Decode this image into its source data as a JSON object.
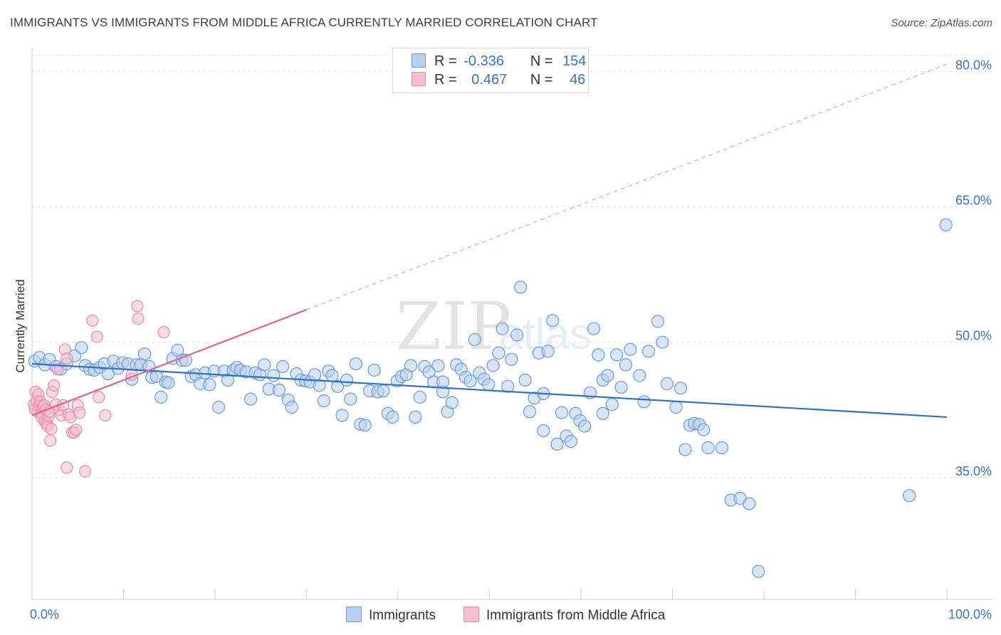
{
  "title": "IMMIGRANTS VS IMMIGRANTS FROM MIDDLE AFRICA CURRENTLY MARRIED CORRELATION CHART",
  "source": "Source: ZipAtlas.com",
  "watermark": {
    "zip": "ZIP",
    "atlas": "atlas"
  },
  "legend": {
    "rows": [
      {
        "r_label": "R =",
        "r_value": "-0.336",
        "n_label": "N =",
        "n_value": "154",
        "color": "#b8d0f0"
      },
      {
        "r_label": "R =",
        "r_value": "0.467",
        "n_label": "N =",
        "n_value": "46",
        "color": "#f6bccf"
      }
    ]
  },
  "chart_data": {
    "type": "scatter",
    "title": "IMMIGRANTS VS IMMIGRANTS FROM MIDDLE AFRICA CURRENTLY MARRIED CORRELATION CHART",
    "xlabel": "",
    "ylabel": "Currently Married",
    "xlim": [
      0,
      100
    ],
    "ylim": [
      21.5,
      82
    ],
    "x_tick_labels": [
      "0.0%",
      "100.0%"
    ],
    "y_ticks": [
      35,
      50,
      65,
      80
    ],
    "y_tick_labels": [
      "35.0%",
      "50.0%",
      "65.0%",
      "80.0%"
    ],
    "grid": true,
    "legend_position": "bottom",
    "series": [
      {
        "name": "Immigrants",
        "color": "#6b9bd8",
        "fill": "#b8d0f0",
        "line_color": "#2f6fd0",
        "trend": {
          "x": [
            0,
            100
          ],
          "y": [
            47.6,
            41.7
          ]
        },
        "points": [
          [
            0.3,
            47.9
          ],
          [
            0.8,
            48.3
          ],
          [
            1.4,
            47.5
          ],
          [
            1.9,
            48.1
          ],
          [
            2.6,
            47.3
          ],
          [
            3.1,
            47.0
          ],
          [
            3.8,
            47.6
          ],
          [
            4.7,
            48.5
          ],
          [
            5.4,
            49.4
          ],
          [
            5.8,
            47.4
          ],
          [
            6.3,
            47.0
          ],
          [
            6.8,
            46.9
          ],
          [
            7.4,
            47.2
          ],
          [
            7.9,
            47.6
          ],
          [
            8.3,
            46.5
          ],
          [
            8.9,
            47.9
          ],
          [
            9.4,
            47.1
          ],
          [
            9.9,
            47.7
          ],
          [
            10.5,
            47.6
          ],
          [
            10.9,
            45.9
          ],
          [
            11.4,
            47.5
          ],
          [
            11.9,
            47.5
          ],
          [
            12.3,
            48.7
          ],
          [
            12.8,
            47.3
          ],
          [
            13.1,
            46.1
          ],
          [
            13.6,
            46.2
          ],
          [
            14.1,
            43.9
          ],
          [
            14.6,
            45.6
          ],
          [
            14.9,
            45.5
          ],
          [
            15.4,
            48.2
          ],
          [
            15.9,
            49.1
          ],
          [
            16.4,
            48.0
          ],
          [
            16.8,
            48.0
          ],
          [
            17.4,
            46.2
          ],
          [
            17.9,
            46.4
          ],
          [
            18.4,
            45.4
          ],
          [
            18.9,
            46.6
          ],
          [
            19.4,
            45.3
          ],
          [
            19.9,
            46.8
          ],
          [
            20.4,
            42.8
          ],
          [
            21.0,
            46.8
          ],
          [
            21.4,
            45.8
          ],
          [
            22.0,
            46.9
          ],
          [
            22.4,
            47.2
          ],
          [
            22.8,
            46.9
          ],
          [
            23.4,
            46.7
          ],
          [
            23.9,
            43.7
          ],
          [
            24.4,
            46.6
          ],
          [
            24.9,
            46.4
          ],
          [
            25.4,
            47.5
          ],
          [
            25.9,
            44.8
          ],
          [
            26.4,
            46.3
          ],
          [
            27.0,
            44.7
          ],
          [
            27.4,
            47.3
          ],
          [
            28.0,
            43.6
          ],
          [
            28.4,
            42.8
          ],
          [
            28.9,
            46.5
          ],
          [
            29.4,
            45.8
          ],
          [
            29.9,
            45.7
          ],
          [
            30.4,
            45.6
          ],
          [
            30.9,
            46.4
          ],
          [
            31.4,
            45.2
          ],
          [
            31.9,
            43.5
          ],
          [
            32.4,
            46.8
          ],
          [
            32.8,
            46.3
          ],
          [
            33.4,
            45.1
          ],
          [
            33.9,
            41.9
          ],
          [
            34.4,
            45.8
          ],
          [
            34.8,
            43.7
          ],
          [
            35.4,
            47.6
          ],
          [
            35.9,
            40.9
          ],
          [
            36.4,
            40.8
          ],
          [
            36.9,
            44.6
          ],
          [
            37.4,
            46.9
          ],
          [
            37.8,
            44.5
          ],
          [
            38.4,
            44.6
          ],
          [
            38.9,
            42.1
          ],
          [
            39.4,
            41.7
          ],
          [
            39.9,
            45.7
          ],
          [
            40.4,
            46.2
          ],
          [
            40.9,
            46.4
          ],
          [
            41.4,
            47.4
          ],
          [
            41.9,
            41.7
          ],
          [
            42.4,
            43.9
          ],
          [
            42.9,
            47.3
          ],
          [
            43.4,
            46.7
          ],
          [
            43.9,
            45.6
          ],
          [
            44.4,
            47.4
          ],
          [
            44.9,
            44.5
          ],
          [
            45.4,
            42.3
          ],
          [
            45.9,
            43.3
          ],
          [
            46.4,
            47.5
          ],
          [
            46.9,
            47.0
          ],
          [
            47.4,
            46.1
          ],
          [
            47.9,
            45.7
          ],
          [
            48.4,
            50.3
          ],
          [
            48.9,
            46.6
          ],
          [
            49.4,
            45.9
          ],
          [
            49.9,
            45.3
          ],
          [
            50.4,
            47.4
          ],
          [
            51.0,
            48.8
          ],
          [
            51.4,
            51.5
          ],
          [
            52.0,
            45.1
          ],
          [
            52.4,
            48.1
          ],
          [
            53.0,
            50.8
          ],
          [
            53.4,
            56.1
          ],
          [
            53.9,
            45.8
          ],
          [
            54.4,
            42.3
          ],
          [
            54.9,
            43.8
          ],
          [
            55.4,
            48.8
          ],
          [
            55.9,
            44.3
          ],
          [
            56.4,
            49.0
          ],
          [
            56.9,
            52.4
          ],
          [
            57.4,
            38.7
          ],
          [
            57.9,
            42.2
          ],
          [
            58.4,
            39.6
          ],
          [
            58.9,
            39.0
          ],
          [
            59.4,
            42.1
          ],
          [
            59.9,
            41.3
          ],
          [
            60.4,
            40.7
          ],
          [
            61.0,
            44.4
          ],
          [
            61.4,
            51.5
          ],
          [
            61.9,
            48.6
          ],
          [
            62.4,
            45.8
          ],
          [
            62.9,
            46.3
          ],
          [
            63.4,
            43.1
          ],
          [
            63.9,
            48.6
          ],
          [
            64.4,
            45.0
          ],
          [
            64.9,
            47.5
          ],
          [
            65.4,
            49.2
          ],
          [
            66.4,
            46.3
          ],
          [
            66.9,
            43.4
          ],
          [
            67.4,
            49.0
          ],
          [
            68.4,
            52.3
          ],
          [
            68.9,
            50.0
          ],
          [
            69.4,
            45.4
          ],
          [
            70.4,
            42.8
          ],
          [
            70.9,
            44.9
          ],
          [
            71.4,
            38.1
          ],
          [
            71.9,
            40.8
          ],
          [
            72.4,
            41.0
          ],
          [
            72.9,
            40.9
          ],
          [
            73.4,
            40.3
          ],
          [
            73.9,
            38.3
          ],
          [
            75.4,
            38.3
          ],
          [
            76.4,
            32.5
          ],
          [
            77.4,
            32.7
          ],
          [
            78.4,
            32.1
          ],
          [
            79.4,
            24.6
          ],
          [
            95.9,
            33.0
          ],
          [
            99.9,
            63.0
          ],
          [
            55.9,
            40.2
          ],
          [
            62.4,
            42.1
          ],
          [
            44.9,
            45.6
          ]
        ]
      },
      {
        "name": "Immigrants from Middle Africa",
        "color": "#e88aaa",
        "fill": "#f6bccf",
        "line_color": "#e0628e",
        "trend": {
          "x": [
            0,
            30
          ],
          "y": [
            41.9,
            53.6
          ]
        },
        "trend_extension": {
          "x": [
            30,
            100
          ],
          "y": [
            53.6,
            80.8
          ]
        },
        "points": [
          [
            0.2,
            43.1
          ],
          [
            0.3,
            42.6
          ],
          [
            0.4,
            44.5
          ],
          [
            0.5,
            43.5
          ],
          [
            0.6,
            42.3
          ],
          [
            0.7,
            44.2
          ],
          [
            0.8,
            42.9
          ],
          [
            0.9,
            43.4
          ],
          [
            1.0,
            42.1
          ],
          [
            1.1,
            41.6
          ],
          [
            1.2,
            42.8
          ],
          [
            1.3,
            43.0
          ],
          [
            1.4,
            41.2
          ],
          [
            1.5,
            42.5
          ],
          [
            1.6,
            41.0
          ],
          [
            1.7,
            40.7
          ],
          [
            1.8,
            41.8
          ],
          [
            1.9,
            42.3
          ],
          [
            2.0,
            39.1
          ],
          [
            2.1,
            40.4
          ],
          [
            2.2,
            44.5
          ],
          [
            2.4,
            45.2
          ],
          [
            2.6,
            43.1
          ],
          [
            2.8,
            47.0
          ],
          [
            3.0,
            42.5
          ],
          [
            3.2,
            41.9
          ],
          [
            3.4,
            43.0
          ],
          [
            3.6,
            49.2
          ],
          [
            3.8,
            48.2
          ],
          [
            4.0,
            42.0
          ],
          [
            4.2,
            41.7
          ],
          [
            4.4,
            40.0
          ],
          [
            4.6,
            40.0
          ],
          [
            4.8,
            40.3
          ],
          [
            5.0,
            43.0
          ],
          [
            5.2,
            42.2
          ],
          [
            3.8,
            36.1
          ],
          [
            5.8,
            35.7
          ],
          [
            6.6,
            52.4
          ],
          [
            7.1,
            50.6
          ],
          [
            7.3,
            43.9
          ],
          [
            8.0,
            41.9
          ],
          [
            10.9,
            46.4
          ],
          [
            11.5,
            54.0
          ],
          [
            11.6,
            52.6
          ],
          [
            14.4,
            51.1
          ]
        ]
      }
    ]
  }
}
